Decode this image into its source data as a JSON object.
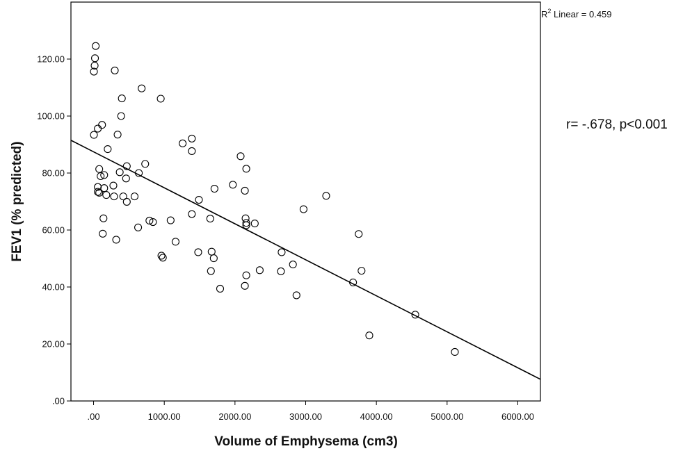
{
  "chart_data": {
    "type": "scatter",
    "xlabel": "Volume of Emphysema (cm3)",
    "ylabel": "FEV1 (% predicted)",
    "xlim": [
      -320,
      6320
    ],
    "ylim": [
      0,
      140
    ],
    "x_ticks": [
      0,
      1000,
      2000,
      3000,
      4000,
      5000,
      6000
    ],
    "x_tick_labels": [
      ".00",
      "1000.00",
      "2000.00",
      "3000.00",
      "4000.00",
      "5000.00",
      "6000.00"
    ],
    "y_ticks": [
      0,
      20,
      40,
      60,
      80,
      100,
      120
    ],
    "y_tick_labels": [
      ".00",
      "20.00",
      "40.00",
      "60.00",
      "80.00",
      "100.00",
      "120.00"
    ],
    "grid": false,
    "fit_line": {
      "x": [
        -320,
        6320
      ],
      "y": [
        91.5,
        7.6
      ]
    },
    "r2_label": {
      "prefix": "R",
      "sup": "2",
      "text": " Linear = 0.459"
    },
    "annotation": "r= -.678, p<0.001",
    "points": [
      [
        30,
        124.6
      ],
      [
        20,
        120.3
      ],
      [
        15,
        117.7
      ],
      [
        5,
        115.6
      ],
      [
        300,
        116.0
      ],
      [
        680,
        109.7
      ],
      [
        400,
        106.2
      ],
      [
        950,
        106.1
      ],
      [
        390,
        100.0
      ],
      [
        120,
        96.9
      ],
      [
        60,
        95.6
      ],
      [
        5,
        93.4
      ],
      [
        340,
        93.5
      ],
      [
        1390,
        92.1
      ],
      [
        1260,
        90.4
      ],
      [
        200,
        88.4
      ],
      [
        1390,
        87.7
      ],
      [
        2080,
        85.9
      ],
      [
        730,
        83.2
      ],
      [
        470,
        82.4
      ],
      [
        80,
        81.4
      ],
      [
        2160,
        81.5
      ],
      [
        370,
        80.3
      ],
      [
        640,
        80.0
      ],
      [
        150,
        79.3
      ],
      [
        100,
        78.9
      ],
      [
        460,
        78.1
      ],
      [
        1970,
        75.9
      ],
      [
        280,
        75.6
      ],
      [
        60,
        75.1
      ],
      [
        150,
        74.7
      ],
      [
        1710,
        74.5
      ],
      [
        2140,
        73.8
      ],
      [
        60,
        73.4
      ],
      [
        80,
        73.1
      ],
      [
        180,
        72.3
      ],
      [
        290,
        71.8
      ],
      [
        420,
        71.8
      ],
      [
        580,
        71.8
      ],
      [
        3290,
        72.0
      ],
      [
        1490,
        70.6
      ],
      [
        470,
        69.9
      ],
      [
        2970,
        67.3
      ],
      [
        1390,
        65.6
      ],
      [
        140,
        64.1
      ],
      [
        1650,
        64.0
      ],
      [
        2150,
        64.1
      ],
      [
        790,
        63.3
      ],
      [
        840,
        62.8
      ],
      [
        1090,
        63.4
      ],
      [
        2160,
        62.5
      ],
      [
        2280,
        62.3
      ],
      [
        2160,
        61.7
      ],
      [
        630,
        60.9
      ],
      [
        3750,
        58.6
      ],
      [
        130,
        58.7
      ],
      [
        320,
        56.6
      ],
      [
        1160,
        55.9
      ],
      [
        1480,
        52.2
      ],
      [
        1670,
        52.4
      ],
      [
        2660,
        52.2
      ],
      [
        960,
        51.0
      ],
      [
        980,
        50.3
      ],
      [
        1700,
        50.1
      ],
      [
        2820,
        47.9
      ],
      [
        2350,
        45.9
      ],
      [
        1660,
        45.6
      ],
      [
        2650,
        45.5
      ],
      [
        3790,
        45.7
      ],
      [
        2160,
        44.1
      ],
      [
        3670,
        41.6
      ],
      [
        2140,
        40.4
      ],
      [
        1790,
        39.4
      ],
      [
        2870,
        37.1
      ],
      [
        4550,
        30.3
      ],
      [
        3900,
        23.0
      ],
      [
        5110,
        17.2
      ]
    ]
  }
}
